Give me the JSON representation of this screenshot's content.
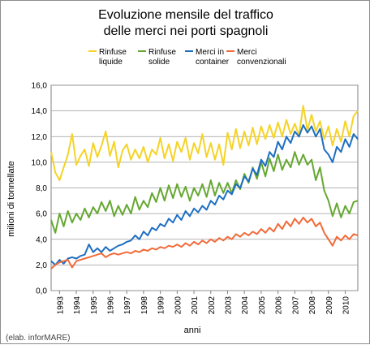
{
  "chart_data": {
    "type": "line",
    "title": [
      "Evoluzione mensile del traffico",
      "delle merci nei porti spagnoli"
    ],
    "xlabel": "anni",
    "ylabel": "milioni di tonnellate",
    "credit": "(elab. inforMARE)",
    "ylim": [
      0,
      16
    ],
    "yticks": [
      "0,0",
      "2,0",
      "4,0",
      "6,0",
      "8,0",
      "10,0",
      "12,0",
      "14,0",
      "16,0"
    ],
    "xlim": [
      1992.5,
      2010.75
    ],
    "xticks": [
      "1993",
      "1994",
      "1995",
      "1996",
      "1997",
      "1998",
      "1999",
      "2000",
      "2001",
      "2002",
      "2003",
      "2004",
      "2005",
      "2006",
      "2007",
      "2008",
      "2009",
      "2010"
    ],
    "grid": true,
    "legend_position": "top",
    "series": [
      {
        "name": [
          "Rinfuse",
          "liquide"
        ],
        "color": "#F5D327",
        "points": [
          [
            1992.5,
            10.8
          ],
          [
            1992.75,
            9.2
          ],
          [
            1993.0,
            8.6
          ],
          [
            1993.25,
            9.6
          ],
          [
            1993.5,
            10.6
          ],
          [
            1993.75,
            12.2
          ],
          [
            1994.0,
            9.8
          ],
          [
            1994.25,
            10.5
          ],
          [
            1994.5,
            11.0
          ],
          [
            1994.75,
            9.7
          ],
          [
            1995.0,
            11.5
          ],
          [
            1995.25,
            10.4
          ],
          [
            1995.5,
            11.3
          ],
          [
            1995.75,
            12.4
          ],
          [
            1996.0,
            10.5
          ],
          [
            1996.25,
            11.6
          ],
          [
            1996.5,
            9.6
          ],
          [
            1996.75,
            10.9
          ],
          [
            1997.0,
            11.4
          ],
          [
            1997.25,
            10.2
          ],
          [
            1997.5,
            11.0
          ],
          [
            1997.75,
            10.3
          ],
          [
            1998.0,
            11.2
          ],
          [
            1998.25,
            10.0
          ],
          [
            1998.5,
            11.0
          ],
          [
            1998.75,
            10.6
          ],
          [
            1999.0,
            11.9
          ],
          [
            1999.25,
            10.3
          ],
          [
            1999.5,
            11.4
          ],
          [
            1999.75,
            10.1
          ],
          [
            2000.0,
            11.6
          ],
          [
            2000.25,
            10.8
          ],
          [
            2000.5,
            11.9
          ],
          [
            2000.75,
            10.2
          ],
          [
            2001.0,
            11.5
          ],
          [
            2001.25,
            10.7
          ],
          [
            2001.5,
            12.2
          ],
          [
            2001.75,
            10.4
          ],
          [
            2002.0,
            11.5
          ],
          [
            2002.25,
            10.2
          ],
          [
            2002.5,
            11.4
          ],
          [
            2002.75,
            9.8
          ],
          [
            2003.0,
            12.3
          ],
          [
            2003.25,
            11.0
          ],
          [
            2003.5,
            12.6
          ],
          [
            2003.75,
            11.1
          ],
          [
            2004.0,
            12.4
          ],
          [
            2004.25,
            11.3
          ],
          [
            2004.5,
            12.7
          ],
          [
            2004.75,
            11.4
          ],
          [
            2005.0,
            12.8
          ],
          [
            2005.25,
            11.8
          ],
          [
            2005.5,
            12.9
          ],
          [
            2005.75,
            11.9
          ],
          [
            2006.0,
            13.1
          ],
          [
            2006.25,
            12.0
          ],
          [
            2006.5,
            13.3
          ],
          [
            2006.75,
            12.2
          ],
          [
            2007.0,
            13.0
          ],
          [
            2007.25,
            12.1
          ],
          [
            2007.5,
            14.4
          ],
          [
            2007.75,
            12.5
          ],
          [
            2008.0,
            13.7
          ],
          [
            2008.25,
            12.4
          ],
          [
            2008.5,
            13.2
          ],
          [
            2008.75,
            11.8
          ],
          [
            2009.0,
            12.8
          ],
          [
            2009.25,
            11.3
          ],
          [
            2009.5,
            12.6
          ],
          [
            2009.75,
            11.6
          ],
          [
            2010.0,
            13.2
          ],
          [
            2010.25,
            12.0
          ],
          [
            2010.5,
            13.6
          ],
          [
            2010.75,
            14.0
          ]
        ]
      },
      {
        "name": [
          "Rinfuse",
          "solide"
        ],
        "color": "#66A832",
        "points": [
          [
            1992.5,
            5.5
          ],
          [
            1992.75,
            4.5
          ],
          [
            1993.0,
            6.0
          ],
          [
            1993.25,
            5.0
          ],
          [
            1993.5,
            6.2
          ],
          [
            1993.75,
            5.3
          ],
          [
            1994.0,
            6.0
          ],
          [
            1994.25,
            5.5
          ],
          [
            1994.5,
            6.4
          ],
          [
            1994.75,
            5.7
          ],
          [
            1995.0,
            6.5
          ],
          [
            1995.25,
            6.0
          ],
          [
            1995.5,
            6.9
          ],
          [
            1995.75,
            6.2
          ],
          [
            1996.0,
            7.0
          ],
          [
            1996.25,
            5.8
          ],
          [
            1996.5,
            6.6
          ],
          [
            1996.75,
            5.9
          ],
          [
            1997.0,
            6.7
          ],
          [
            1997.25,
            6.0
          ],
          [
            1997.5,
            7.3
          ],
          [
            1997.75,
            6.3
          ],
          [
            1998.0,
            7.0
          ],
          [
            1998.25,
            6.5
          ],
          [
            1998.5,
            7.6
          ],
          [
            1998.75,
            6.9
          ],
          [
            1999.0,
            8.0
          ],
          [
            1999.25,
            7.0
          ],
          [
            1999.5,
            8.2
          ],
          [
            1999.75,
            7.2
          ],
          [
            2000.0,
            8.3
          ],
          [
            2000.25,
            7.3
          ],
          [
            2000.5,
            8.1
          ],
          [
            2000.75,
            7.0
          ],
          [
            2001.0,
            8.0
          ],
          [
            2001.25,
            7.4
          ],
          [
            2001.5,
            8.3
          ],
          [
            2001.75,
            7.3
          ],
          [
            2002.0,
            8.6
          ],
          [
            2002.25,
            7.4
          ],
          [
            2002.5,
            8.4
          ],
          [
            2002.75,
            7.6
          ],
          [
            2003.0,
            8.4
          ],
          [
            2003.25,
            7.6
          ],
          [
            2003.5,
            8.6
          ],
          [
            2003.75,
            7.9
          ],
          [
            2004.0,
            9.1
          ],
          [
            2004.25,
            8.4
          ],
          [
            2004.5,
            9.6
          ],
          [
            2004.75,
            8.7
          ],
          [
            2005.0,
            10.0
          ],
          [
            2005.25,
            8.9
          ],
          [
            2005.5,
            10.3
          ],
          [
            2005.75,
            9.3
          ],
          [
            2006.0,
            10.6
          ],
          [
            2006.25,
            9.4
          ],
          [
            2006.5,
            10.2
          ],
          [
            2006.75,
            9.6
          ],
          [
            2007.0,
            10.8
          ],
          [
            2007.25,
            9.8
          ],
          [
            2007.5,
            10.6
          ],
          [
            2007.75,
            9.8
          ],
          [
            2008.0,
            10.2
          ],
          [
            2008.25,
            8.6
          ],
          [
            2008.5,
            9.6
          ],
          [
            2008.75,
            7.8
          ],
          [
            2009.0,
            7.0
          ],
          [
            2009.25,
            5.8
          ],
          [
            2009.5,
            6.8
          ],
          [
            2009.75,
            5.7
          ],
          [
            2010.0,
            6.6
          ],
          [
            2010.25,
            6.0
          ],
          [
            2010.5,
            6.9
          ],
          [
            2010.75,
            7.0
          ]
        ]
      },
      {
        "name": [
          "Merci in",
          "container"
        ],
        "color": "#1E6FC2",
        "points": [
          [
            1992.5,
            2.3
          ],
          [
            1992.75,
            2.0
          ],
          [
            1993.0,
            2.4
          ],
          [
            1993.25,
            2.1
          ],
          [
            1993.5,
            2.5
          ],
          [
            1993.75,
            2.6
          ],
          [
            1994.0,
            2.5
          ],
          [
            1994.25,
            2.7
          ],
          [
            1994.5,
            2.8
          ],
          [
            1994.75,
            3.6
          ],
          [
            1995.0,
            3.0
          ],
          [
            1995.25,
            3.3
          ],
          [
            1995.5,
            3.0
          ],
          [
            1995.75,
            3.4
          ],
          [
            1996.0,
            3.1
          ],
          [
            1996.25,
            3.3
          ],
          [
            1996.5,
            3.5
          ],
          [
            1996.75,
            3.6
          ],
          [
            1997.0,
            3.8
          ],
          [
            1997.25,
            3.9
          ],
          [
            1997.5,
            4.3
          ],
          [
            1997.75,
            4.0
          ],
          [
            1998.0,
            4.6
          ],
          [
            1998.25,
            4.3
          ],
          [
            1998.5,
            4.9
          ],
          [
            1998.75,
            4.7
          ],
          [
            1999.0,
            5.2
          ],
          [
            1999.25,
            5.0
          ],
          [
            1999.5,
            5.6
          ],
          [
            1999.75,
            5.3
          ],
          [
            2000.0,
            5.9
          ],
          [
            2000.25,
            5.5
          ],
          [
            2000.5,
            6.2
          ],
          [
            2000.75,
            5.8
          ],
          [
            2001.0,
            6.4
          ],
          [
            2001.25,
            6.1
          ],
          [
            2001.5,
            6.6
          ],
          [
            2001.75,
            6.3
          ],
          [
            2002.0,
            7.0
          ],
          [
            2002.25,
            6.7
          ],
          [
            2002.5,
            7.4
          ],
          [
            2002.75,
            7.1
          ],
          [
            2003.0,
            7.8
          ],
          [
            2003.25,
            7.5
          ],
          [
            2003.5,
            8.3
          ],
          [
            2003.75,
            8.0
          ],
          [
            2004.0,
            8.9
          ],
          [
            2004.25,
            8.5
          ],
          [
            2004.5,
            9.5
          ],
          [
            2004.75,
            9.0
          ],
          [
            2005.0,
            10.2
          ],
          [
            2005.25,
            9.7
          ],
          [
            2005.5,
            10.8
          ],
          [
            2005.75,
            10.4
          ],
          [
            2006.0,
            11.6
          ],
          [
            2006.25,
            11.0
          ],
          [
            2006.5,
            12.0
          ],
          [
            2006.75,
            11.5
          ],
          [
            2007.0,
            12.4
          ],
          [
            2007.25,
            12.0
          ],
          [
            2007.5,
            12.9
          ],
          [
            2007.75,
            12.3
          ],
          [
            2008.0,
            12.8
          ],
          [
            2008.25,
            12.0
          ],
          [
            2008.5,
            12.6
          ],
          [
            2008.75,
            11.0
          ],
          [
            2009.0,
            10.6
          ],
          [
            2009.25,
            10.0
          ],
          [
            2009.5,
            11.2
          ],
          [
            2009.75,
            10.8
          ],
          [
            2010.0,
            11.8
          ],
          [
            2010.25,
            11.2
          ],
          [
            2010.5,
            12.2
          ],
          [
            2010.75,
            11.8
          ]
        ]
      },
      {
        "name": [
          "Merci",
          "convenzionali"
        ],
        "color": "#F26B3A",
        "points": [
          [
            1992.5,
            1.7
          ],
          [
            1992.75,
            2.0
          ],
          [
            1993.0,
            2.2
          ],
          [
            1993.25,
            2.3
          ],
          [
            1993.5,
            2.4
          ],
          [
            1993.75,
            1.8
          ],
          [
            1994.0,
            2.3
          ],
          [
            1994.25,
            2.4
          ],
          [
            1994.5,
            2.5
          ],
          [
            1994.75,
            2.6
          ],
          [
            1995.0,
            2.7
          ],
          [
            1995.25,
            2.8
          ],
          [
            1995.5,
            2.9
          ],
          [
            1995.75,
            2.6
          ],
          [
            1996.0,
            2.8
          ],
          [
            1996.25,
            2.9
          ],
          [
            1996.5,
            2.8
          ],
          [
            1996.75,
            2.9
          ],
          [
            1997.0,
            3.0
          ],
          [
            1997.25,
            2.9
          ],
          [
            1997.5,
            3.1
          ],
          [
            1997.75,
            3.0
          ],
          [
            1998.0,
            3.2
          ],
          [
            1998.25,
            3.1
          ],
          [
            1998.5,
            3.3
          ],
          [
            1998.75,
            3.2
          ],
          [
            1999.0,
            3.4
          ],
          [
            1999.25,
            3.3
          ],
          [
            1999.5,
            3.5
          ],
          [
            1999.75,
            3.4
          ],
          [
            2000.0,
            3.6
          ],
          [
            2000.25,
            3.4
          ],
          [
            2000.5,
            3.7
          ],
          [
            2000.75,
            3.5
          ],
          [
            2001.0,
            3.8
          ],
          [
            2001.25,
            3.6
          ],
          [
            2001.5,
            3.9
          ],
          [
            2001.75,
            3.7
          ],
          [
            2002.0,
            4.0
          ],
          [
            2002.25,
            3.8
          ],
          [
            2002.5,
            4.1
          ],
          [
            2002.75,
            3.9
          ],
          [
            2003.0,
            4.2
          ],
          [
            2003.25,
            4.0
          ],
          [
            2003.5,
            4.4
          ],
          [
            2003.75,
            4.2
          ],
          [
            2004.0,
            4.5
          ],
          [
            2004.25,
            4.3
          ],
          [
            2004.5,
            4.6
          ],
          [
            2004.75,
            4.4
          ],
          [
            2005.0,
            4.8
          ],
          [
            2005.25,
            4.5
          ],
          [
            2005.5,
            4.9
          ],
          [
            2005.75,
            4.6
          ],
          [
            2006.0,
            5.2
          ],
          [
            2006.25,
            4.8
          ],
          [
            2006.5,
            5.4
          ],
          [
            2006.75,
            5.0
          ],
          [
            2007.0,
            5.6
          ],
          [
            2007.25,
            5.2
          ],
          [
            2007.5,
            5.7
          ],
          [
            2007.75,
            5.3
          ],
          [
            2008.0,
            5.6
          ],
          [
            2008.25,
            5.0
          ],
          [
            2008.5,
            5.3
          ],
          [
            2008.75,
            4.5
          ],
          [
            2009.0,
            4.0
          ],
          [
            2009.25,
            3.5
          ],
          [
            2009.5,
            4.2
          ],
          [
            2009.75,
            3.9
          ],
          [
            2010.0,
            4.3
          ],
          [
            2010.25,
            4.0
          ],
          [
            2010.5,
            4.4
          ],
          [
            2010.75,
            4.3
          ]
        ]
      }
    ]
  }
}
